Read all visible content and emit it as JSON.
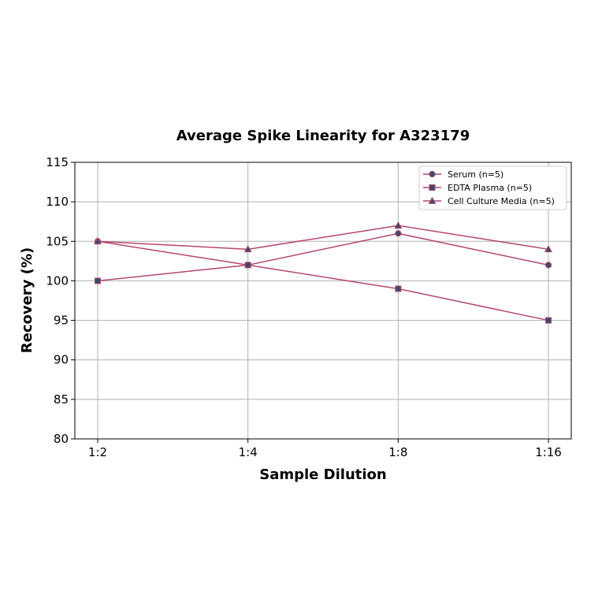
{
  "chart_data": {
    "type": "line",
    "title": "Average Spike Linearity for A323179",
    "xlabel": "Sample Dilution",
    "ylabel": "Recovery (%)",
    "categories": [
      "1:2",
      "1:4",
      "1:8",
      "1:16"
    ],
    "ylim": [
      80,
      115
    ],
    "yticks": [
      80,
      85,
      90,
      95,
      100,
      105,
      110,
      115
    ],
    "grid": true,
    "legend_position": "top-right",
    "line_color": "#b5476b",
    "marker_color": "#3b4a6b",
    "series": [
      {
        "name": "Serum (n=5)",
        "marker": "circle",
        "values": [
          105,
          102,
          106,
          102
        ]
      },
      {
        "name": "EDTA Plasma (n=5)",
        "marker": "square",
        "values": [
          100,
          102,
          99,
          95
        ]
      },
      {
        "name": "Cell Culture Media (n=5)",
        "marker": "triangle",
        "values": [
          105,
          104,
          107,
          104
        ]
      }
    ]
  }
}
